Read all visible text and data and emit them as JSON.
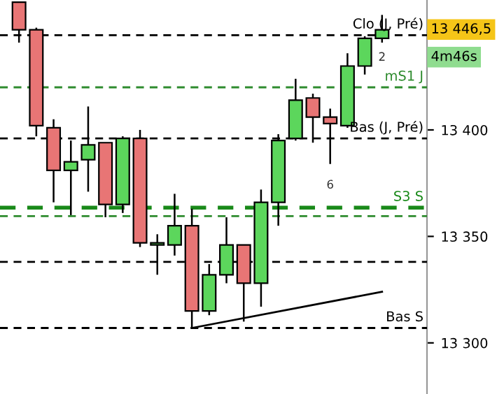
{
  "chart_data": {
    "type": "candlestick",
    "categories": [
      null,
      null,
      null,
      null,
      null,
      null,
      null,
      null,
      null,
      null,
      null,
      null,
      null,
      null,
      null,
      null,
      null,
      null,
      null,
      null,
      null,
      null
    ],
    "ohlc": [
      [
        13460,
        13460,
        13441,
        13447
      ],
      [
        13447,
        13448,
        13397,
        13402
      ],
      [
        13401,
        13405,
        13366,
        13381
      ],
      [
        13381,
        13395,
        13360,
        13385
      ],
      [
        13386,
        13411,
        13371,
        13393
      ],
      [
        13394,
        13394,
        13359,
        13365
      ],
      [
        13365,
        13397,
        13361,
        13396
      ],
      [
        13396,
        13400,
        13345,
        13347
      ],
      [
        13346,
        13351,
        13332,
        13347
      ],
      [
        13346,
        13370,
        13341,
        13355
      ],
      [
        13355,
        13363,
        13307,
        13315
      ],
      [
        13315,
        13337,
        13313,
        13332
      ],
      [
        13332,
        13359,
        13328,
        13346
      ],
      [
        13346,
        13346,
        13310,
        13328
      ],
      [
        13328,
        13372,
        13317,
        13366
      ],
      [
        13366,
        13398,
        13355,
        13395
      ],
      [
        13396,
        13424,
        13395,
        13414
      ],
      [
        13415,
        13417,
        13394,
        13406
      ],
      [
        13406,
        13410,
        13384,
        13403
      ],
      [
        13402,
        13436,
        13401,
        13430
      ],
      [
        13430,
        13444,
        13426,
        13443
      ],
      [
        13443,
        13454,
        13441,
        13447
      ]
    ],
    "colors": [
      "#e87575",
      "#e87575",
      "#e87575",
      "#5cd65c",
      "#5cd65c",
      "#e87575",
      "#5cd65c",
      "#e87575",
      "#5cd65c",
      "#5cd65c",
      "#e87575",
      "#5cd65c",
      "#5cd65c",
      "#e87575",
      "#5cd65c",
      "#5cd65c",
      "#5cd65c",
      "#e87575",
      "#e87575",
      "#5cd65c",
      "#5cd65c",
      "#5cd65c"
    ],
    "series": [
      {
        "type": "line",
        "values": [
          null,
          null,
          null,
          null,
          null,
          null,
          null,
          null,
          null,
          null,
          13307,
          null,
          null,
          null,
          null,
          null,
          null,
          null,
          null,
          null,
          null,
          13324
        ],
        "color": "#000000"
      }
    ],
    "ylim": [
      13276,
      13461
    ],
    "yticks": [
      {
        "value": 13300,
        "label": "13 300"
      },
      {
        "value": 13350,
        "label": "13 350"
      },
      {
        "value": 13400,
        "label": "13 400"
      }
    ],
    "ref_lines": [
      {
        "axis": "y",
        "value": 13444.5,
        "label": "Clo (J, Pré)",
        "color": "#000000",
        "line_style": "dashed"
      },
      {
        "axis": "y",
        "value": 13420,
        "label": "mS1 J",
        "color": "#2e8b2e",
        "line_style": "dashed"
      },
      {
        "axis": "y",
        "value": 13396,
        "label": "Bas (J, Pré)",
        "color": "#000000",
        "line_style": "dashed"
      },
      {
        "axis": "y",
        "value": 13363.5,
        "label": "S3 S",
        "color": "#1a8a1a",
        "line_style": "dashed"
      },
      {
        "axis": "y",
        "value": 13359.5,
        "label": null,
        "color": "#2e8b2e",
        "line_style": "dashed"
      },
      {
        "axis": "y",
        "value": 13338,
        "label": null,
        "color": "#000000",
        "line_style": "dashed"
      },
      {
        "axis": "y",
        "value": 13307,
        "label": "Bas S",
        "color": "#000000",
        "line_style": "dashed"
      }
    ],
    "annotations": [
      "13 446,5",
      "4m46s",
      "2",
      "6"
    ],
    "grid": false
  }
}
